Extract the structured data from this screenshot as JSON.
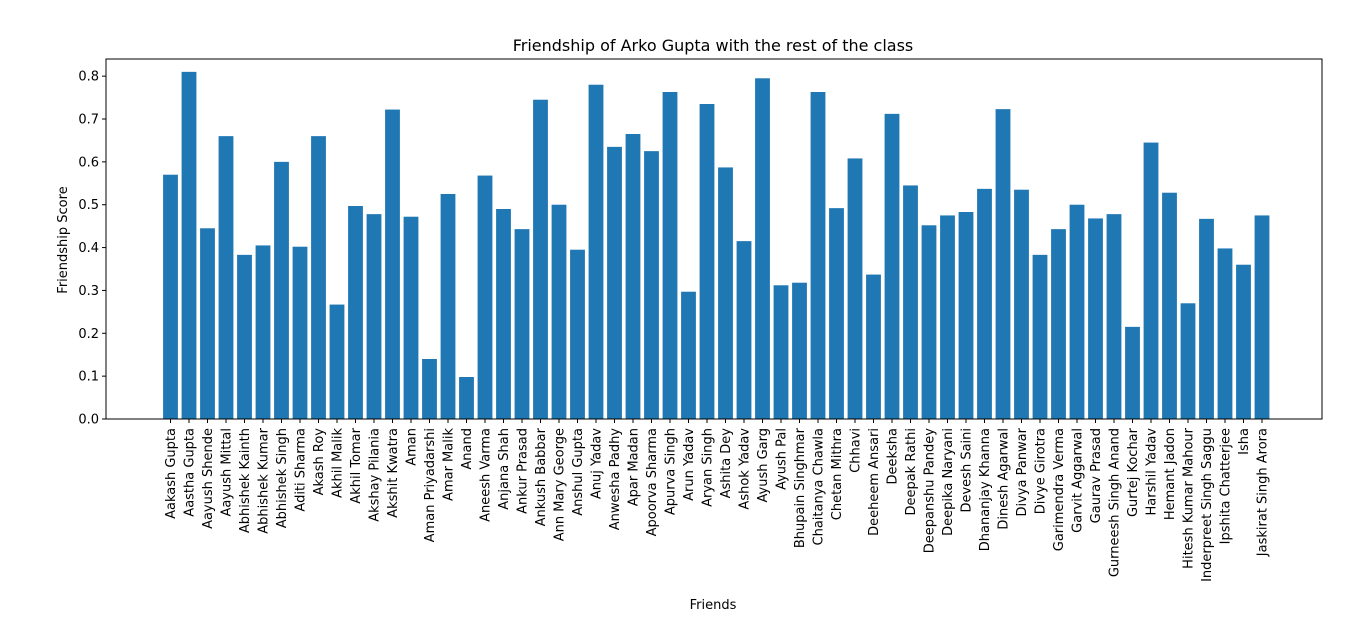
{
  "chart_data": {
    "type": "bar",
    "title": "Friendship of Arko Gupta with the rest of the class",
    "xlabel": "Friends",
    "ylabel": "Friendship Score",
    "ylim": [
      0,
      0.84
    ],
    "yticks": [
      "0.0",
      "0.1",
      "0.2",
      "0.3",
      "0.4",
      "0.5",
      "0.6",
      "0.7",
      "0.8"
    ],
    "bar_color": "#1f77b4",
    "grid": false,
    "categories": [
      "Aakash Gupta",
      "Aastha Gupta",
      "Aayush Shende",
      "Aayush Mittal",
      "Abhishek Kainth",
      "Abhishek Kumar",
      "Abhishek Singh",
      "Aditi Sharma",
      "Akash Roy",
      "Akhil Malik",
      "Akhil Tomar",
      "Akshay Pilania",
      "Akshit Kwatra",
      "Aman",
      "Aman Priyadarshi",
      "Amar Malik",
      "Anand",
      "Aneesh Varma",
      "Anjana Shah",
      "Ankur Prasad",
      "Ankush Babbar",
      "Ann Mary George",
      "Anshul Gupta",
      "Anuj Yadav",
      "Anwesha Padhy",
      "Apar Madan",
      "Apoorva Sharma",
      "Apurva Singh",
      "Arun Yadav",
      "Aryan Singh",
      "Ashita Dey",
      "Ashok Yadav",
      "Ayush Garg",
      "Ayush Pal",
      "Bhupain Singhmar",
      "Chaitanya Chawla",
      "Chetan Mithra",
      "Chhavi",
      "Deeheem Ansari",
      "Deeksha",
      "Deepak Rathi",
      "Deepanshu Pandey",
      "Deepika Naryani",
      "Devesh Saini",
      "Dhananjay Khanna",
      "Dinesh Agarwal",
      "Divya Panwar",
      "Divye Girotra",
      "Garimendra Verma",
      "Garvit Aggarwal",
      "Gaurav Prasad",
      "Gurneesh Singh Anand",
      "Gurtej Kochar",
      "Harshil Yadav",
      "Hemant Jadon",
      "Hitesh Kumar Mahour",
      "Inderpreet Singh Saggu",
      "Ipshita Chatterjee",
      "Isha",
      "Jaskirat Singh Arora"
    ],
    "values": [
      0.57,
      0.81,
      0.445,
      0.66,
      0.383,
      0.405,
      0.6,
      0.402,
      0.66,
      0.267,
      0.497,
      0.478,
      0.722,
      0.472,
      0.14,
      0.525,
      0.098,
      0.568,
      0.49,
      0.443,
      0.745,
      0.5,
      0.395,
      0.78,
      0.635,
      0.665,
      0.625,
      0.763,
      0.297,
      0.735,
      0.587,
      0.415,
      0.795,
      0.312,
      0.318,
      0.763,
      0.492,
      0.608,
      0.337,
      0.712,
      0.545,
      0.452,
      0.475,
      0.483,
      0.537,
      0.723,
      0.535,
      0.383,
      0.443,
      0.5,
      0.468,
      0.478,
      0.215,
      0.645,
      0.528,
      0.27,
      0.467,
      0.398,
      0.36,
      0.475
    ]
  }
}
